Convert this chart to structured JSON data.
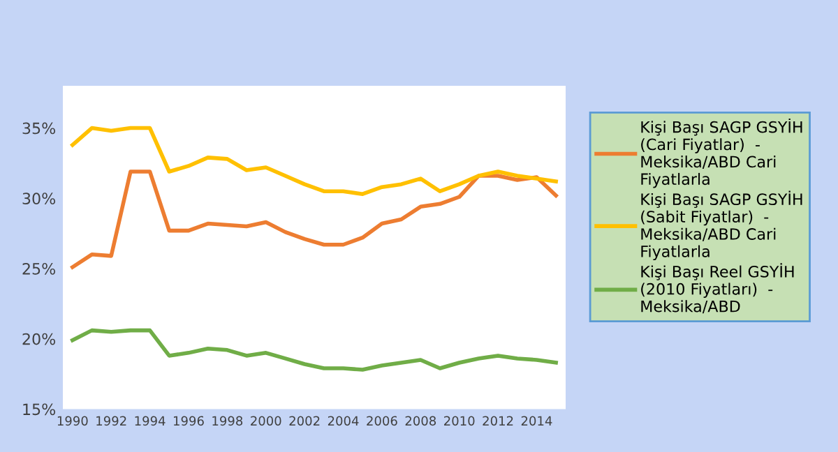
{
  "chart_data": {
    "type": "line",
    "categories": [
      "1990",
      null,
      "1992",
      null,
      "1994",
      null,
      "1996",
      null,
      "1998",
      null,
      "2000",
      null,
      "2002",
      null,
      "2004",
      null,
      "2006",
      null,
      "2008",
      null,
      "2010",
      null,
      "2012",
      null,
      "2014",
      null
    ],
    "series": [
      {
        "name": "Kişi Başı SAGP GSYİH (Cari Fiyatlar)  - Meksika/ABD Cari Fiyatlarla",
        "color": "#ed7d31",
        "values": [
          25.1,
          26.0,
          25.9,
          31.9,
          31.9,
          27.7,
          27.7,
          28.2,
          28.1,
          28.0,
          28.3,
          27.6,
          27.1,
          26.7,
          26.7,
          27.2,
          28.2,
          28.5,
          29.4,
          29.6,
          30.1,
          31.6,
          31.6,
          31.3,
          31.5,
          30.2
        ]
      },
      {
        "name": "Kişi Başı SAGP GSYİH (Sabit Fiyatlar)  - Meksika/ABD Cari Fiyatlarla",
        "color": "#ffc000",
        "values": [
          33.8,
          35.0,
          34.8,
          35.0,
          35.0,
          31.9,
          32.3,
          32.9,
          32.8,
          32.0,
          32.2,
          31.6,
          31.0,
          30.5,
          30.5,
          30.3,
          30.8,
          31.0,
          31.4,
          30.5,
          31.0,
          31.6,
          31.9,
          31.6,
          31.4,
          31.2
        ]
      },
      {
        "name": "Kişi Başı Reel GSYİH (2010 Fiyatları)  - Meksika/ABD",
        "color": "#70ad47",
        "values": [
          19.9,
          20.6,
          20.5,
          20.6,
          20.6,
          18.8,
          19.0,
          19.3,
          19.2,
          18.8,
          19.0,
          18.6,
          18.2,
          17.9,
          17.9,
          17.8,
          18.1,
          18.3,
          18.5,
          17.9,
          18.3,
          18.6,
          18.8,
          18.6,
          18.5,
          18.3
        ]
      }
    ],
    "ylim": [
      15,
      38
    ],
    "yticks": [
      {
        "value": 15,
        "label": "15%"
      },
      {
        "value": 20,
        "label": "20%"
      },
      {
        "value": 25,
        "label": "25%"
      },
      {
        "value": 30,
        "label": "30%"
      },
      {
        "value": 35,
        "label": "35%"
      }
    ],
    "grid": false,
    "legend": "right",
    "marker": "none",
    "line_style": "solid"
  }
}
